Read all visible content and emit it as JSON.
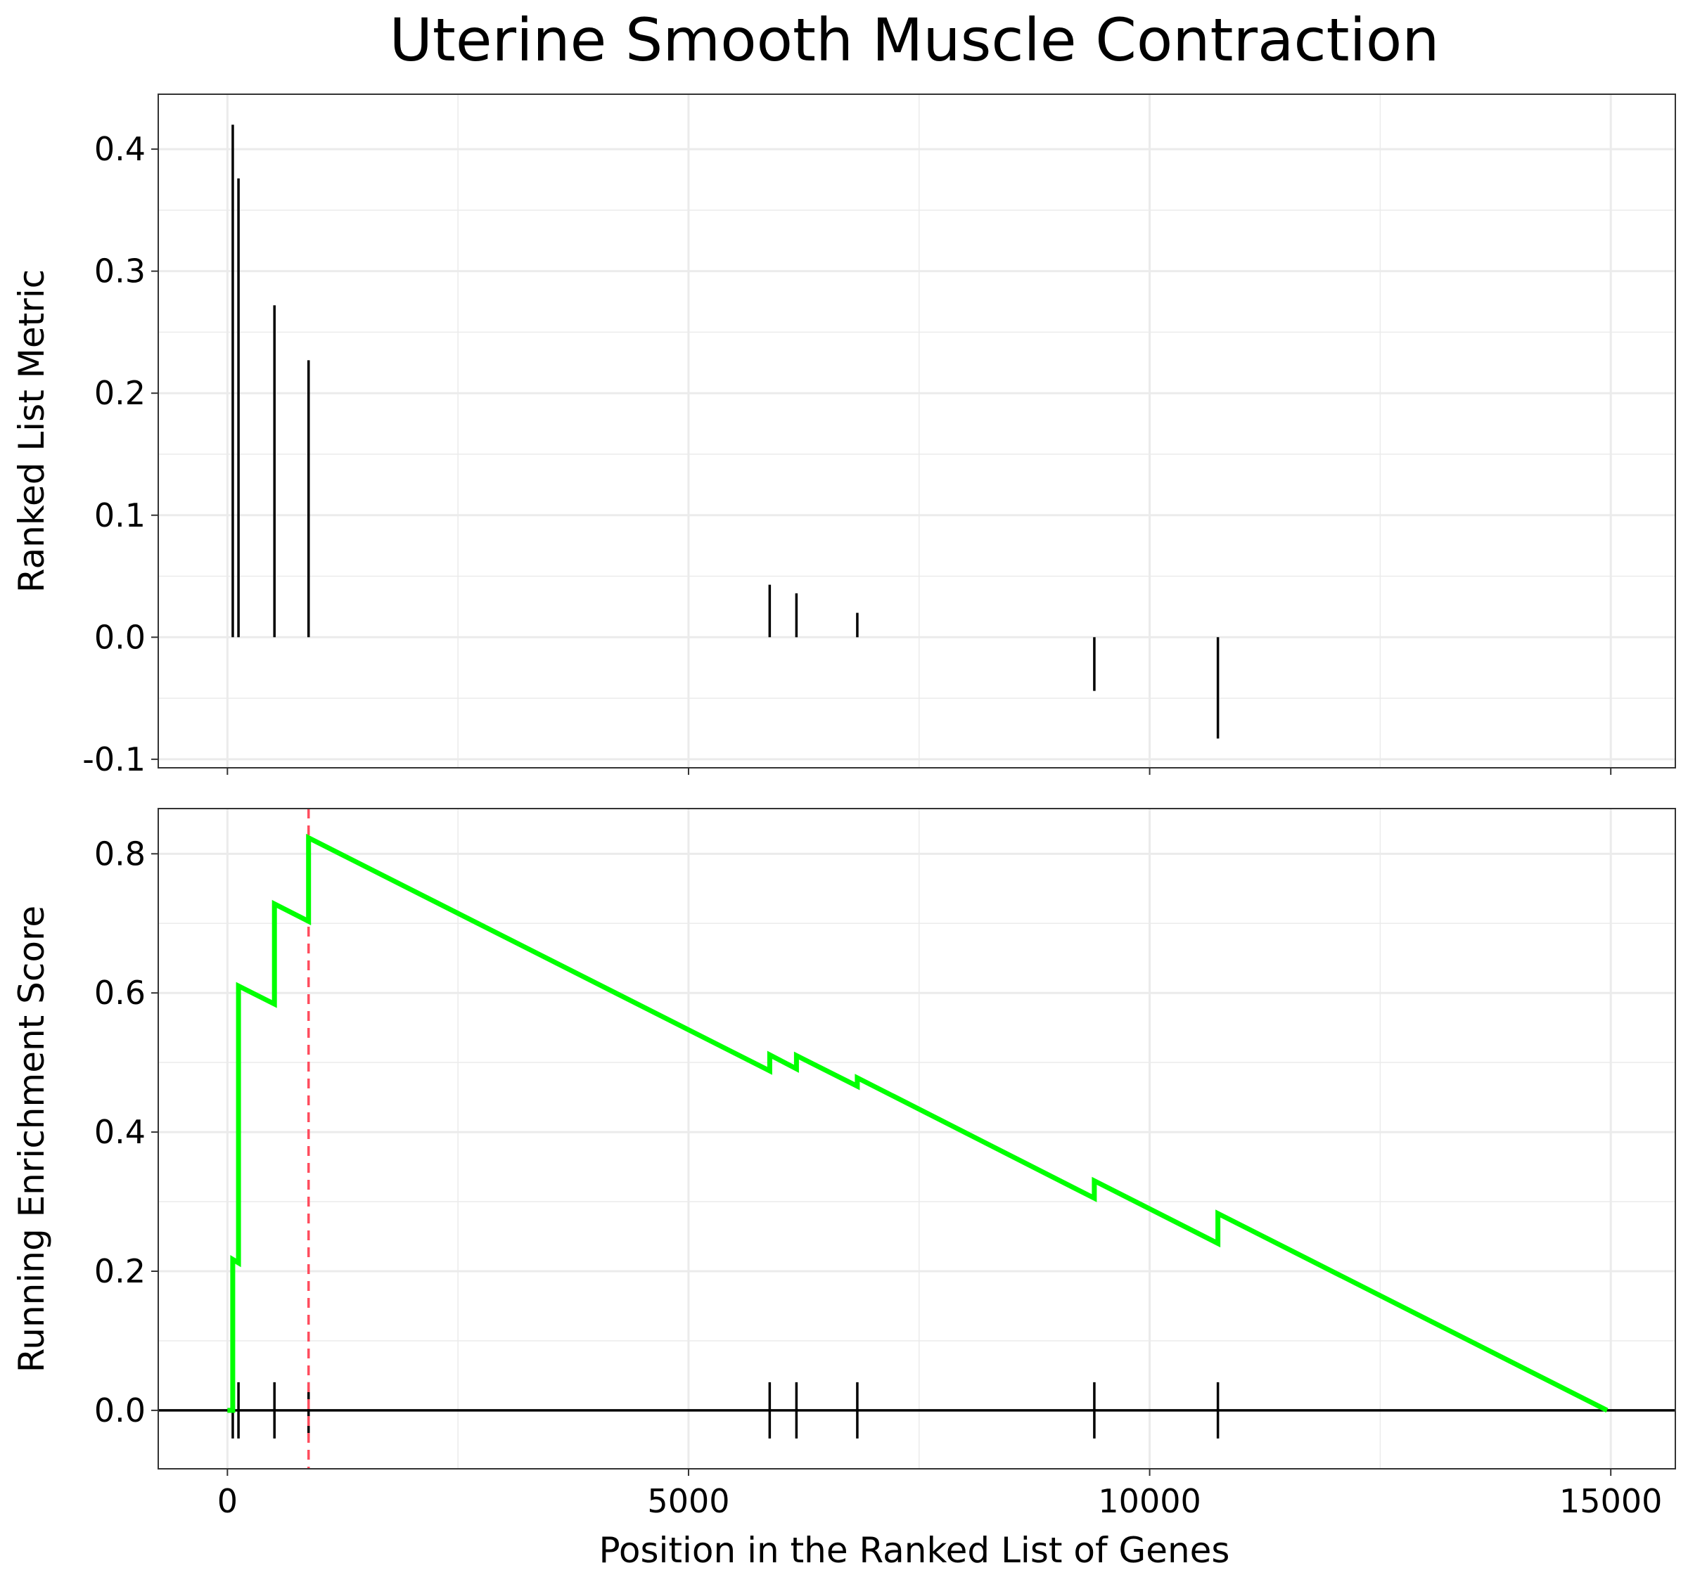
{
  "chart_data": {
    "type": "line",
    "title": "Uterine Smooth Muscle Contraction",
    "xlabel": "Position in the Ranked List of Genes",
    "x_ticks": [
      0,
      5000,
      10000,
      15000
    ],
    "xlim": [
      -750,
      15700
    ],
    "grid": true,
    "colors": {
      "running_score": "#00ff00",
      "peak_line": "#ff4d5e",
      "bars": "#000000"
    },
    "panels": [
      {
        "name": "ranked-list-metric",
        "type": "bar",
        "ylabel": "Ranked List Metric",
        "ylim": [
          -0.107,
          0.445
        ],
        "y_ticks": [
          -0.1,
          0.0,
          0.1,
          0.2,
          0.3,
          0.4
        ],
        "y_tick_labels": [
          "-0.1",
          "0.0",
          "0.1",
          "0.2",
          "0.3",
          "0.4"
        ],
        "x": [
          58,
          120,
          510,
          880,
          5880,
          6170,
          6830,
          9400,
          10740
        ],
        "values": [
          0.42,
          0.376,
          0.272,
          0.227,
          0.043,
          0.036,
          0.02,
          -0.044,
          -0.083
        ]
      },
      {
        "name": "running-enrichment-score",
        "type": "line",
        "ylabel": "Running Enrichment Score",
        "ylim": [
          -0.084,
          0.865
        ],
        "y_ticks": [
          0.0,
          0.2,
          0.4,
          0.6,
          0.8
        ],
        "y_tick_labels": [
          "0.0",
          "0.2",
          "0.4",
          "0.6",
          "0.8"
        ],
        "series": [
          {
            "x": [
              0,
              58,
              58,
              120,
              120,
              510,
              510,
              880,
              880,
              5880,
              5880,
              6170,
              6170,
              6830,
              6830,
              9400,
              9400,
              10740,
              10740,
              14960
            ],
            "values": [
              0.0,
              0.0,
              0.217,
              0.212,
              0.61,
              0.584,
              0.728,
              0.703,
              0.823,
              0.488,
              0.511,
              0.491,
              0.51,
              0.466,
              0.478,
              0.305,
              0.33,
              0.24,
              0.283,
              0.0
            ]
          }
        ],
        "peak_x": 880,
        "hits": [
          58,
          120,
          510,
          880,
          5880,
          6170,
          6830,
          9400,
          10740
        ]
      }
    ]
  }
}
